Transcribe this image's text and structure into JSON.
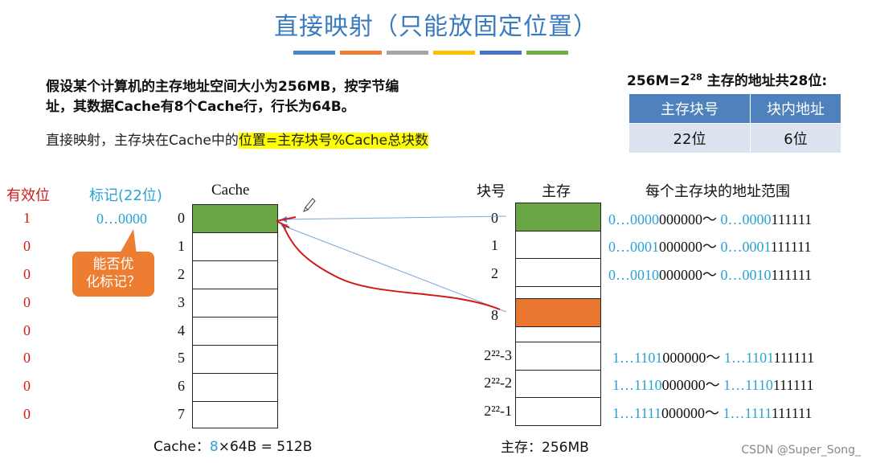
{
  "title": "直接映射（只能放固定位置）",
  "accent_bars": [
    "#4a86c5",
    "#ed7d31",
    "#a5a5a5",
    "#ffc000",
    "#4472c4",
    "#70ad47"
  ],
  "problem": {
    "line1": "假设某个计算机的主存地址空间大小为256MB，按字节编",
    "line2": "址，其数据Cache有8个Cache行，行长为64B。"
  },
  "rule": {
    "prefix": "直接映射，主存块在Cache中的",
    "highlight": "位置=主存块号%Cache总块数"
  },
  "address_info": {
    "prefix": "256M=2",
    "exponent": "28",
    "suffix": " 主存的地址共28位:",
    "headers": [
      "主存块号",
      "块内地址"
    ],
    "values": [
      "22位",
      "6位"
    ]
  },
  "cache": {
    "valid_header": "有效位",
    "tag_header": "标记(22位)",
    "title": "Cache",
    "valid_bits": [
      "1",
      "0",
      "0",
      "0",
      "0",
      "0",
      "0",
      "0"
    ],
    "tags": [
      "0…0000",
      "",
      "",
      "",
      "",
      "",
      "",
      ""
    ],
    "line_numbers": [
      "0",
      "1",
      "2",
      "3",
      "4",
      "5",
      "6",
      "7"
    ],
    "caption_prefix": "Cache：",
    "caption_num": "8",
    "caption_suffix": "×64B = 512B"
  },
  "callout": {
    "line1": "能否优",
    "line2": "化标记？"
  },
  "memory": {
    "block_header": "块号",
    "title": "主存",
    "range_header": "每个主存块的地址范围",
    "caption": "主存：256MB",
    "block_labels": [
      "0",
      "1",
      "2",
      "8",
      "2²²-3",
      "2²²-2",
      "2²²-1"
    ],
    "ranges": [
      {
        "p1": "0…0000",
        "p2": "000000～ ",
        "p3": "0…0000",
        "p4": "111111"
      },
      {
        "p1": "0…0001",
        "p2": "000000～ ",
        "p3": "0…0001",
        "p4": "111111"
      },
      {
        "p1": "0…0010",
        "p2": "000000～ ",
        "p3": "0…0010",
        "p4": "111111"
      },
      {
        "p1": "1…1101",
        "p2": "000000～ ",
        "p3": "1…1101",
        "p4": "111111"
      },
      {
        "p1": "1…1110",
        "p2": "000000～ ",
        "p3": "1…1110",
        "p4": "111111"
      },
      {
        "p1": "1…1111",
        "p2": "000000～ ",
        "p3": "1…1111",
        "p4": "111111"
      }
    ]
  },
  "colors": {
    "green": "#6aa544",
    "orange": "#e8762e",
    "cyan": "#29a3d6",
    "red": "#d01a1a"
  },
  "watermark": "CSDN @Super_Song_"
}
